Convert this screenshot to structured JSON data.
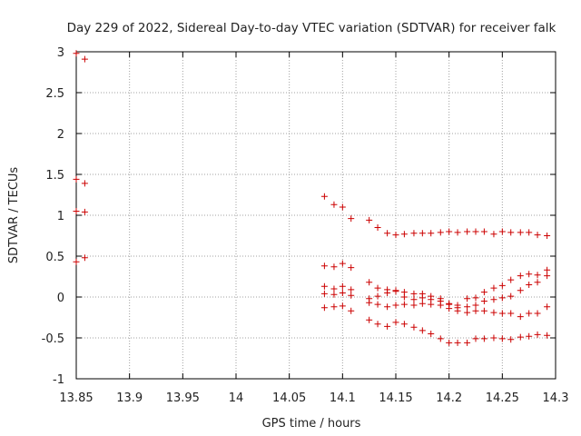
{
  "chart_data": {
    "type": "scatter",
    "title": "Day 229 of 2022, Sidereal Day-to-day VTEC variation (SDTVAR) for receiver falk",
    "xlabel": "GPS time / hours",
    "ylabel": "SDTVAR / TECUs",
    "xlim": [
      13.85,
      14.3
    ],
    "ylim": [
      -1,
      3
    ],
    "xticks": [
      "13.85",
      "13.9",
      "13.95",
      "14",
      "14.05",
      "14.1",
      "14.15",
      "14.2",
      "14.25",
      "14.3"
    ],
    "yticks": [
      "-1",
      "-0.5",
      "0",
      "0.5",
      "1",
      "1.5",
      "2",
      "2.5",
      "3"
    ],
    "grid": true,
    "marker": "+",
    "color": "#cc0000",
    "series": [
      {
        "name": "trace-1",
        "points": [
          [
            13.85,
            2.98
          ],
          [
            13.858,
            2.91
          ]
        ]
      },
      {
        "name": "trace-2",
        "points": [
          [
            13.85,
            1.44
          ],
          [
            13.858,
            1.39
          ]
        ]
      },
      {
        "name": "trace-3",
        "points": [
          [
            13.85,
            1.05
          ],
          [
            13.858,
            1.04
          ]
        ]
      },
      {
        "name": "trace-4",
        "points": [
          [
            13.85,
            0.43
          ],
          [
            13.858,
            0.48
          ]
        ]
      },
      {
        "name": "trace-5",
        "points": [
          [
            14.083,
            1.23
          ],
          [
            14.092,
            1.13
          ],
          [
            14.1,
            1.1
          ],
          [
            14.108,
            0.96
          ],
          [
            14.125,
            0.94
          ],
          [
            14.133,
            0.85
          ],
          [
            14.142,
            0.78
          ],
          [
            14.15,
            0.76
          ],
          [
            14.158,
            0.77
          ],
          [
            14.167,
            0.78
          ],
          [
            14.175,
            0.78
          ],
          [
            14.183,
            0.78
          ],
          [
            14.192,
            0.79
          ],
          [
            14.2,
            0.8
          ],
          [
            14.208,
            0.79
          ],
          [
            14.217,
            0.8
          ],
          [
            14.225,
            0.8
          ],
          [
            14.233,
            0.8
          ],
          [
            14.242,
            0.77
          ],
          [
            14.25,
            0.8
          ],
          [
            14.258,
            0.79
          ],
          [
            14.267,
            0.79
          ],
          [
            14.275,
            0.79
          ],
          [
            14.283,
            0.76
          ],
          [
            14.292,
            0.75
          ]
        ]
      },
      {
        "name": "trace-6",
        "points": [
          [
            14.083,
            0.38
          ],
          [
            14.092,
            0.37
          ],
          [
            14.1,
            0.41
          ],
          [
            14.108,
            0.36
          ],
          [
            14.125,
            0.18
          ],
          [
            14.133,
            0.11
          ],
          [
            14.142,
            0.09
          ],
          [
            14.15,
            0.08
          ],
          [
            14.158,
            0.06
          ],
          [
            14.167,
            0.04
          ],
          [
            14.175,
            0.04
          ],
          [
            14.183,
            0.01
          ],
          [
            14.192,
            -0.02
          ],
          [
            14.2,
            -0.08
          ],
          [
            14.208,
            -0.1
          ],
          [
            14.217,
            -0.02
          ],
          [
            14.225,
            -0.01
          ],
          [
            14.233,
            0.06
          ],
          [
            14.242,
            0.11
          ],
          [
            14.25,
            0.14
          ],
          [
            14.258,
            0.21
          ],
          [
            14.267,
            0.26
          ],
          [
            14.275,
            0.28
          ],
          [
            14.283,
            0.27
          ],
          [
            14.292,
            0.33
          ]
        ]
      },
      {
        "name": "trace-7",
        "points": [
          [
            14.083,
            0.13
          ],
          [
            14.092,
            0.1
          ],
          [
            14.1,
            0.13
          ],
          [
            14.108,
            0.09
          ],
          [
            14.125,
            -0.02
          ],
          [
            14.133,
            0.01
          ],
          [
            14.142,
            0.05
          ],
          [
            14.15,
            0.07
          ],
          [
            14.158,
            0.0
          ],
          [
            14.167,
            -0.03
          ],
          [
            14.175,
            -0.01
          ],
          [
            14.183,
            -0.03
          ],
          [
            14.192,
            -0.05
          ],
          [
            14.2,
            -0.09
          ],
          [
            14.208,
            -0.13
          ],
          [
            14.217,
            -0.12
          ],
          [
            14.225,
            -0.1
          ],
          [
            14.233,
            -0.05
          ],
          [
            14.242,
            -0.03
          ],
          [
            14.25,
            -0.01
          ],
          [
            14.258,
            0.01
          ],
          [
            14.267,
            0.08
          ],
          [
            14.275,
            0.15
          ],
          [
            14.283,
            0.18
          ],
          [
            14.292,
            0.26
          ]
        ]
      },
      {
        "name": "trace-8",
        "points": [
          [
            14.083,
            0.04
          ],
          [
            14.092,
            0.03
          ],
          [
            14.1,
            0.05
          ],
          [
            14.108,
            0.02
          ],
          [
            14.125,
            -0.07
          ],
          [
            14.133,
            -0.09
          ],
          [
            14.142,
            -0.12
          ],
          [
            14.15,
            -0.1
          ],
          [
            14.158,
            -0.09
          ],
          [
            14.167,
            -0.1
          ],
          [
            14.175,
            -0.08
          ],
          [
            14.183,
            -0.09
          ],
          [
            14.192,
            -0.1
          ],
          [
            14.2,
            -0.14
          ],
          [
            14.208,
            -0.17
          ],
          [
            14.217,
            -0.19
          ],
          [
            14.225,
            -0.17
          ],
          [
            14.233,
            -0.17
          ],
          [
            14.242,
            -0.19
          ],
          [
            14.25,
            -0.2
          ],
          [
            14.258,
            -0.2
          ],
          [
            14.267,
            -0.24
          ],
          [
            14.275,
            -0.2
          ],
          [
            14.283,
            -0.2
          ],
          [
            14.292,
            -0.12
          ]
        ]
      },
      {
        "name": "trace-9",
        "points": [
          [
            14.083,
            -0.13
          ],
          [
            14.092,
            -0.12
          ],
          [
            14.1,
            -0.11
          ],
          [
            14.108,
            -0.17
          ],
          [
            14.125,
            -0.28
          ],
          [
            14.133,
            -0.33
          ],
          [
            14.142,
            -0.36
          ],
          [
            14.15,
            -0.31
          ],
          [
            14.158,
            -0.33
          ],
          [
            14.167,
            -0.37
          ],
          [
            14.175,
            -0.41
          ],
          [
            14.183,
            -0.45
          ],
          [
            14.192,
            -0.51
          ],
          [
            14.2,
            -0.56
          ],
          [
            14.208,
            -0.56
          ],
          [
            14.217,
            -0.56
          ],
          [
            14.225,
            -0.51
          ],
          [
            14.233,
            -0.51
          ],
          [
            14.242,
            -0.5
          ],
          [
            14.25,
            -0.51
          ],
          [
            14.258,
            -0.52
          ],
          [
            14.267,
            -0.49
          ],
          [
            14.275,
            -0.48
          ],
          [
            14.283,
            -0.46
          ],
          [
            14.292,
            -0.47
          ]
        ]
      }
    ]
  }
}
